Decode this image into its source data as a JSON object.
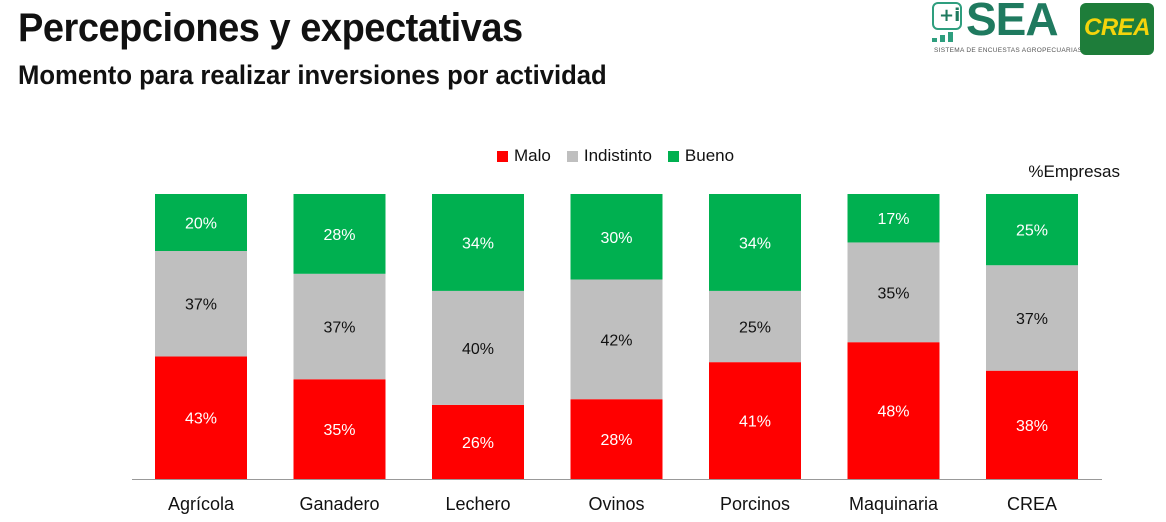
{
  "header": {
    "title": "Percepciones y expectativas",
    "subtitle": "Momento para realizar inversiones por actividad"
  },
  "logos": {
    "sea": {
      "text": "SEA",
      "subtitle": "SISTEMA DE ENCUESTAS AGROPECUARIAS",
      "color": "#1f7a5f"
    },
    "crea": {
      "text": "CREA",
      "background": "#1e7d3a",
      "text_color": "#f4d40c"
    }
  },
  "chart_data": {
    "type": "bar",
    "stacked": true,
    "percent": true,
    "title": "",
    "unit_label": "%Empresas",
    "legend_position": "top-center",
    "categories": [
      "Agrícola",
      "Ganadero",
      "Lechero",
      "Ovinos",
      "Porcinos",
      "Maquinaria",
      "CREA"
    ],
    "series": [
      {
        "name": "Malo",
        "color": "#ff0000",
        "label_color": "#ffffff",
        "values": [
          43,
          35,
          26,
          28,
          41,
          48,
          38
        ]
      },
      {
        "name": "Indistinto",
        "color": "#bfbfbf",
        "label_color": "#111111",
        "values": [
          37,
          37,
          40,
          42,
          25,
          35,
          37
        ]
      },
      {
        "name": "Bueno",
        "color": "#00b050",
        "label_color": "#ffffff",
        "values": [
          20,
          28,
          34,
          30,
          34,
          17,
          25
        ]
      }
    ],
    "ylim": [
      0,
      100
    ],
    "grid": false
  }
}
